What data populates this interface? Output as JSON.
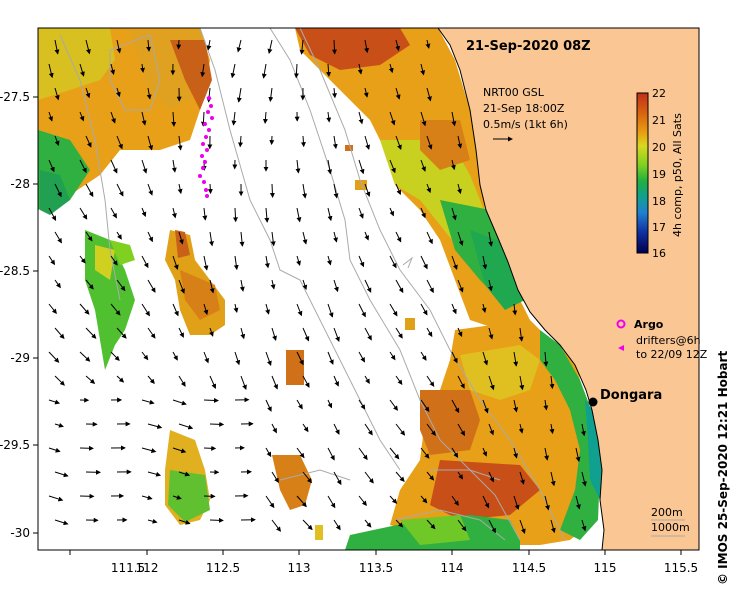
{
  "title": "21-Sep-2020 08Z",
  "credit": "© IMOS 25-Sep-2020 12:21 Hobart",
  "axes": {
    "lon_ticks": [
      "111.5",
      "112",
      "112.5",
      "113",
      "113.5",
      "114",
      "114.5",
      "115",
      "115.5"
    ],
    "lat_ticks": [
      "-27.5",
      "-28",
      "-28.5",
      "-29",
      "-29.5",
      "-30"
    ]
  },
  "current_legend": {
    "line1": "NRT00 GSL",
    "line2": "21-Sep 18:00Z",
    "line3": "0.5m/s (1kt 6h)"
  },
  "colorbar": {
    "label": "4h comp, p50, All Sats",
    "ticks": [
      "22",
      "21",
      "20",
      "19",
      "18",
      "17",
      "16"
    ]
  },
  "float_legend": {
    "argo": "Argo",
    "drifters_line1": "drifters@6h",
    "drifters_line2": "to 22/09 12Z"
  },
  "place": "Dongara",
  "depth_legend": {
    "shallow": "200m",
    "deep": "1000m"
  },
  "colors": {
    "land": "#f9c694",
    "argo": "#ee00ee",
    "contour": "#aaaaaa"
  }
}
